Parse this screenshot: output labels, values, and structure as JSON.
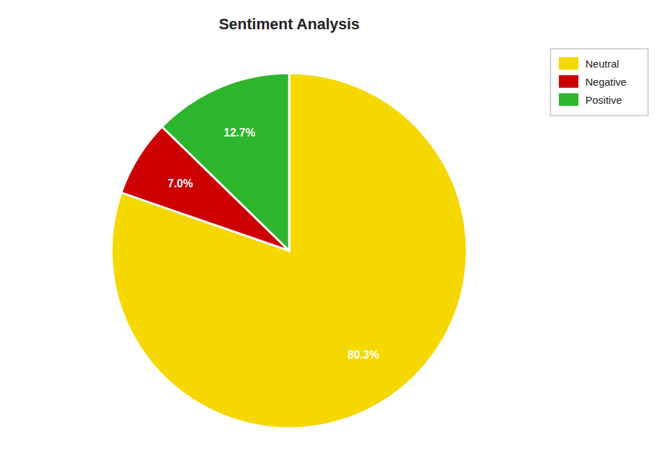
{
  "chart_data": {
    "type": "pie",
    "title": "Sentiment Analysis",
    "categories": [
      "Neutral",
      "Negative",
      "Positive"
    ],
    "values": [
      80.3,
      7.0,
      12.7
    ],
    "value_labels": [
      "80.3%",
      "7.0%",
      "12.7%"
    ],
    "colors": [
      "#f5d800",
      "#cc0000",
      "#2db52d"
    ],
    "data_labels": true,
    "legend": "upper right"
  }
}
